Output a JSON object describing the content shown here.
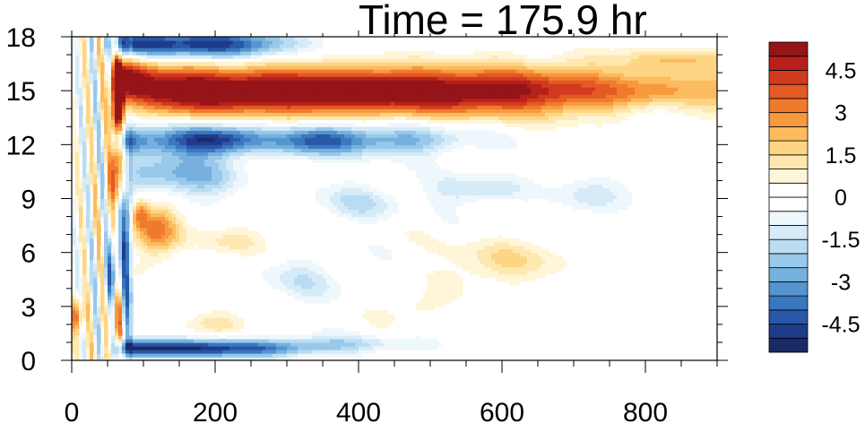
{
  "chart_data": {
    "type": "heatmap",
    "title": "Time = 175.9 hr",
    "xlabel": "",
    "ylabel": "",
    "xlim": [
      0,
      900
    ],
    "ylim": [
      0,
      18
    ],
    "x_ticks": [
      0,
      200,
      400,
      600,
      800
    ],
    "x_tick_labels": [
      "0",
      "200",
      "400",
      "600",
      "800"
    ],
    "y_ticks": [
      0,
      3,
      6,
      9,
      12,
      15,
      18
    ],
    "y_tick_labels": [
      "0",
      "3",
      "6",
      "9",
      "12",
      "15",
      "18"
    ],
    "colorbar": {
      "levels": [
        -5.5,
        -5,
        -4.5,
        -4,
        -3.5,
        -3,
        -2.5,
        -2,
        -1.5,
        -1,
        -0.5,
        0,
        0.5,
        1,
        1.5,
        2,
        2.5,
        3,
        3.5,
        4,
        4.5,
        5,
        5.5
      ],
      "labels": [
        "-4.5",
        "-3",
        "-1.5",
        "0",
        "1.5",
        "3",
        "4.5"
      ],
      "label_values": [
        -4.5,
        -3,
        -1.5,
        0,
        1.5,
        3,
        4.5
      ],
      "colors": [
        "#1a2a66",
        "#1f3b8c",
        "#2a57a8",
        "#3a77bf",
        "#5595cf",
        "#75b0de",
        "#98c8ea",
        "#b9dcf2",
        "#d6ebf8",
        "#eef7fc",
        "#ffffff",
        "#ffffff",
        "#fff6da",
        "#fee8b0",
        "#fdd584",
        "#fbbb5e",
        "#f7993f",
        "#f07a2c",
        "#e35a22",
        "#d23a1e",
        "#b8201c",
        "#951418"
      ]
    },
    "features": [
      {
        "label": "positive upper band",
        "x": [
          50,
          800
        ],
        "y": [
          13.8,
          16.5
        ],
        "peak_value": 5.5,
        "decay_x_center": 720
      },
      {
        "label": "negative band below",
        "x": [
          80,
          450
        ],
        "y": [
          11.0,
          13.3
        ],
        "peak_value": -5.0
      },
      {
        "label": "negative top band",
        "x": [
          60,
          300
        ],
        "y": [
          16.8,
          18
        ],
        "peak_value": -5.0
      },
      {
        "label": "negative bottom band",
        "x": [
          60,
          320
        ],
        "y": [
          0.1,
          1.3
        ],
        "peak_value": -5.0
      },
      {
        "label": "positive mid patch",
        "x": [
          90,
          160
        ],
        "y": [
          5.8,
          8.8
        ],
        "peak_value": 3.0
      },
      {
        "label": "alternating left columns",
        "x": [
          0,
          80
        ],
        "y": [
          0,
          18
        ],
        "peak_value": 4.5
      },
      {
        "label": "weak positive patch",
        "x": [
          520,
          680
        ],
        "y": [
          4.5,
          7.0
        ],
        "peak_value": 1.5
      },
      {
        "label": "weak negative patch",
        "x": [
          520,
          760
        ],
        "y": [
          8.0,
          10.0
        ],
        "peak_value": -1.5
      }
    ]
  }
}
